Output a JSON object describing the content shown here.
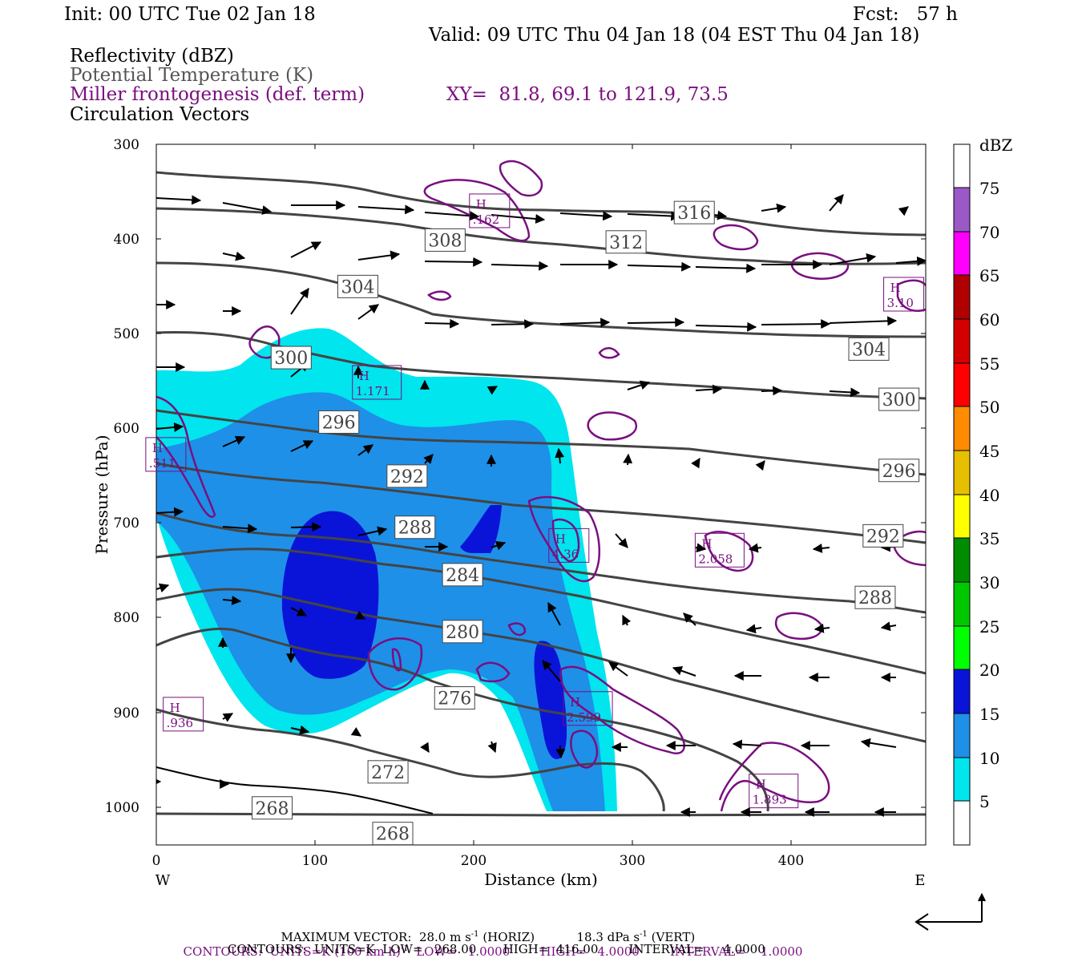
{
  "header": {
    "init": "Init: 00 UTC Tue 02 Jan 18",
    "fcst": "Fcst:   57 h",
    "valid": "Valid: 09 UTC Thu 04 Jan 18 (04 EST Thu 04 Jan 18)",
    "field1": "Reflectivity (dBZ)",
    "field2": "Potential Temperature (K)",
    "field3": "Miller frontogenesis (def. term)",
    "xy": "XY=  81.8, 69.1 to 121.9, 73.5",
    "field4": "Circulation Vectors"
  },
  "colors": {
    "theta": "#444444",
    "frontogenesis": "#7a0f80",
    "refl_5": "#00e5ee",
    "refl_10": "#1e90e8",
    "refl_15": "#0a14d8"
  },
  "footer": {
    "maxvec_label": "MAXIMUM VECTOR:",
    "maxvec_horiz": "28.0 m s",
    "maxvec_horiz_exp": "-1",
    "maxvec_horiz_tag": "(HORIZ)",
    "maxvec_vert": "18.3 dPa s",
    "maxvec_vert_exp": "-1",
    "maxvec_vert_tag": "(VERT)",
    "contours1": "CONTOURS:  UNITS=K (100 km h)",
    "contours1_exp": "-1",
    "contours1_rest": "LOW=   1.0000        HIGH=   4.0000        INTERVAL=    1.0000",
    "contours2": "CONTOURS:  UNITS=K  LOW=   268.00       HIGH=  416.00        INTERVAL=     4.0000"
  },
  "chart_data": {
    "type": "cross-section",
    "xlabel": "Distance (km)",
    "ylabel": "Pressure (hPa)",
    "xlim": [
      0,
      485
    ],
    "ylim": [
      1040,
      300
    ],
    "x_ticks": [
      "0",
      "100",
      "200",
      "300",
      "400"
    ],
    "y_ticks": [
      "300",
      "400",
      "500",
      "600",
      "700",
      "800",
      "900",
      "1000"
    ],
    "x_left_label": "W",
    "x_right_label": "E",
    "colorbar": {
      "unit": "dBZ",
      "levels": [
        "5",
        "10",
        "15",
        "20",
        "25",
        "30",
        "35",
        "40",
        "45",
        "50",
        "55",
        "60",
        "65",
        "70",
        "75"
      ],
      "colors": [
        "#ffffff",
        "#00e5ee",
        "#1e90e8",
        "#0a14d8",
        "#00ff00",
        "#00c800",
        "#008c00",
        "#ffff00",
        "#e6c000",
        "#ff8c00",
        "#ff0000",
        "#d40000",
        "#b00000",
        "#ff00ff",
        "#9b59c8",
        "#ffffff"
      ]
    },
    "theta_labels": [
      {
        "text": "316",
        "x": 339,
        "p": 372
      },
      {
        "text": "312",
        "x": 296,
        "p": 403
      },
      {
        "text": "308",
        "x": 182,
        "p": 401
      },
      {
        "text": "304",
        "x": 127,
        "p": 450
      },
      {
        "text": "304",
        "x": 449,
        "p": 516
      },
      {
        "text": "300",
        "x": 85,
        "p": 525
      },
      {
        "text": "300",
        "x": 468,
        "p": 569
      },
      {
        "text": "296",
        "x": 115,
        "p": 593
      },
      {
        "text": "296",
        "x": 468,
        "p": 644
      },
      {
        "text": "292",
        "x": 158,
        "p": 650
      },
      {
        "text": "292",
        "x": 458,
        "p": 713
      },
      {
        "text": "288",
        "x": 163,
        "p": 704
      },
      {
        "text": "288",
        "x": 453,
        "p": 778
      },
      {
        "text": "284",
        "x": 193,
        "p": 754
      },
      {
        "text": "280",
        "x": 193,
        "p": 814
      },
      {
        "text": "276",
        "x": 188,
        "p": 884
      },
      {
        "text": "272",
        "x": 146,
        "p": 962
      },
      {
        "text": "268",
        "x": 73,
        "p": 1000
      },
      {
        "text": "268",
        "x": 149,
        "p": 1027
      }
    ],
    "frontogenesis_maxima": [
      {
        "label": "H",
        "value": ".162",
        "x": 210,
        "p": 371
      },
      {
        "label": "H",
        "value": "3.10",
        "x": 471,
        "p": 459
      },
      {
        "label": "H",
        "value": "1.171",
        "x": 139,
        "p": 552
      },
      {
        "label": "H",
        "value": ".511",
        "x": 6,
        "p": 628
      },
      {
        "label": "H",
        "value": "4.36",
        "x": 260,
        "p": 724
      },
      {
        "label": "H",
        "value": "2.058",
        "x": 355,
        "p": 729
      },
      {
        "label": "H",
        "value": "2.599",
        "x": 272,
        "p": 896
      },
      {
        "label": "H",
        "value": ".936",
        "x": 17,
        "p": 902
      },
      {
        "label": "H",
        "value": "1.893",
        "x": 389,
        "p": 983
      }
    ]
  }
}
